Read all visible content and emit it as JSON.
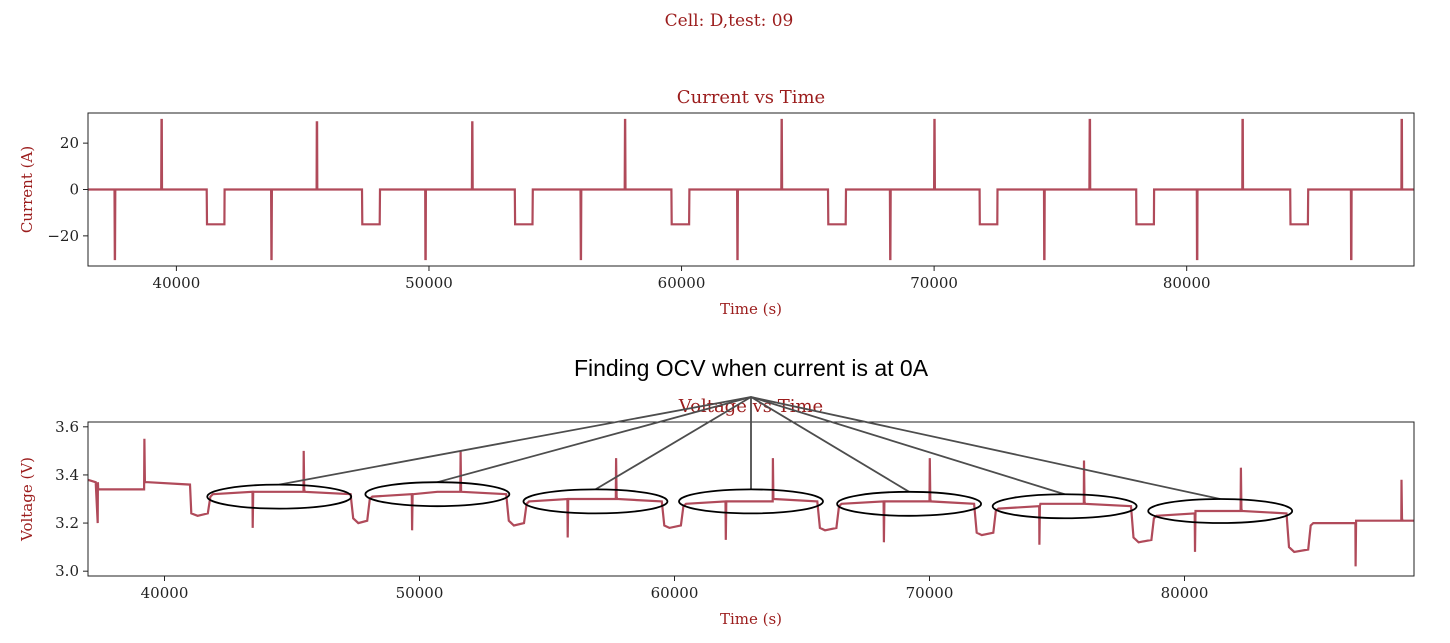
{
  "suptitle": "Cell: D,test: 09",
  "annotation": "Finding OCV when current is at 0A",
  "colors": {
    "line": "#b04a5a",
    "title": "#9b1c1c",
    "axis": "#222222",
    "annotation_line": "#4d4d4d"
  },
  "chart_data": [
    {
      "type": "line",
      "title": "Current vs Time",
      "xlabel": "Time (s)",
      "ylabel": "Current (A)",
      "xlim": [
        36500,
        89000
      ],
      "ylim": [
        -33,
        33
      ],
      "xticks": [
        40000,
        50000,
        60000,
        70000,
        80000
      ],
      "yticks": [
        -20,
        0,
        20
      ],
      "grid": false,
      "series": [
        {
          "x": [
            36500,
            37550,
            37560,
            37570,
            37580,
            39400,
            39410,
            39420,
            39430,
            41200,
            41210,
            41900,
            41910,
            43750,
            43760,
            43770,
            43780,
            45550,
            45560,
            45570,
            45580,
            47350,
            47360,
            48050,
            48060,
            49850,
            49860,
            49870,
            49880,
            51700,
            51710,
            51720,
            51730,
            53400,
            53410,
            54100,
            54110,
            56000,
            56010,
            56020,
            56030,
            57750,
            57760,
            57770,
            57780,
            59600,
            59610,
            60300,
            60310,
            62200,
            62210,
            62220,
            62230,
            63950,
            63960,
            63970,
            63980,
            65800,
            65810,
            66500,
            66510,
            68250,
            68260,
            68270,
            68280,
            70000,
            70010,
            70020,
            70030,
            71800,
            71810,
            72500,
            72510,
            74350,
            74360,
            74370,
            74380,
            76150,
            76160,
            76170,
            76180,
            78000,
            78010,
            78700,
            78710,
            80400,
            80410,
            80420,
            80430,
            82200,
            82210,
            82220,
            82230,
            84100,
            84110,
            84800,
            84810,
            86500,
            86510,
            86520,
            86530,
            88500,
            88510,
            88520,
            88530,
            89000
          ],
          "y": [
            0,
            0,
            -30,
            -30,
            0,
            0,
            30,
            30,
            0,
            0,
            -15,
            -15,
            0,
            0,
            -30,
            -30,
            0,
            0,
            29,
            29,
            0,
            0,
            -15,
            -15,
            0,
            0,
            -30,
            -30,
            0,
            0,
            29,
            29,
            0,
            0,
            -15,
            -15,
            0,
            0,
            -30,
            -30,
            0,
            0,
            30,
            30,
            0,
            0,
            -15,
            -15,
            0,
            0,
            -30,
            -30,
            0,
            0,
            30,
            30,
            0,
            0,
            -15,
            -15,
            0,
            0,
            -30,
            -30,
            0,
            0,
            30,
            30,
            0,
            0,
            -15,
            -15,
            0,
            0,
            -30,
            -30,
            0,
            0,
            30,
            30,
            0,
            0,
            -15,
            -15,
            0,
            0,
            -30,
            -30,
            0,
            0,
            30,
            30,
            0,
            0,
            -15,
            -15,
            0,
            0,
            -30,
            -30,
            0,
            0,
            30,
            30,
            0,
            0
          ]
        }
      ]
    },
    {
      "type": "line",
      "title": "Voltage vs Time",
      "xlabel": "Time (s)",
      "ylabel": "Voltage (V)",
      "xlim": [
        37000,
        89000
      ],
      "ylim": [
        2.98,
        3.62
      ],
      "xticks": [
        40000,
        50000,
        60000,
        70000,
        80000
      ],
      "yticks": [
        3.0,
        3.2,
        3.4,
        3.6
      ],
      "grid": false,
      "series": [
        {
          "x": [
            37000,
            37300,
            37380,
            37390,
            37400,
            37420,
            37500,
            39200,
            39210,
            39230,
            39260,
            39350,
            41000,
            41050,
            41300,
            41700,
            41800,
            41900,
            43450,
            43460,
            43480,
            43500,
            44500,
            45450,
            45460,
            45480,
            45500,
            47300,
            47400,
            47600,
            47950,
            48050,
            48150,
            49700,
            49710,
            49730,
            49750,
            50700,
            51600,
            51610,
            51630,
            51650,
            53400,
            53500,
            53700,
            54100,
            54200,
            54300,
            55800,
            55810,
            55830,
            55850,
            56900,
            57700,
            57710,
            57730,
            57750,
            59500,
            59600,
            59800,
            60250,
            60350,
            60450,
            62000,
            62010,
            62030,
            62050,
            63000,
            63850,
            63860,
            63880,
            63900,
            65600,
            65700,
            65900,
            66350,
            66450,
            66550,
            68200,
            68210,
            68230,
            68250,
            69200,
            70000,
            70010,
            70030,
            70050,
            71750,
            71850,
            72050,
            72500,
            72600,
            72700,
            74300,
            74310,
            74330,
            74350,
            75300,
            76050,
            76060,
            76080,
            76100,
            77900,
            78000,
            78200,
            78700,
            78800,
            78900,
            80400,
            80410,
            80430,
            80450,
            81400,
            82200,
            82210,
            82230,
            82250,
            84000,
            84100,
            84300,
            84850,
            84950,
            85050,
            86700,
            86710,
            86730,
            86750,
            87700,
            88500,
            88510,
            88530,
            88550,
            89000
          ],
          "y": [
            3.38,
            3.37,
            3.2,
            3.37,
            3.34,
            3.34,
            3.34,
            3.34,
            3.55,
            3.37,
            3.37,
            3.37,
            3.36,
            3.24,
            3.23,
            3.24,
            3.31,
            3.32,
            3.33,
            3.18,
            3.33,
            3.33,
            3.33,
            3.33,
            3.5,
            3.34,
            3.33,
            3.32,
            3.22,
            3.2,
            3.21,
            3.3,
            3.31,
            3.32,
            3.17,
            3.32,
            3.32,
            3.33,
            3.33,
            3.5,
            3.33,
            3.33,
            3.32,
            3.21,
            3.19,
            3.2,
            3.28,
            3.29,
            3.3,
            3.14,
            3.3,
            3.3,
            3.3,
            3.3,
            3.47,
            3.31,
            3.3,
            3.29,
            3.19,
            3.18,
            3.19,
            3.27,
            3.28,
            3.29,
            3.13,
            3.29,
            3.29,
            3.29,
            3.29,
            3.47,
            3.3,
            3.3,
            3.29,
            3.18,
            3.17,
            3.18,
            3.27,
            3.28,
            3.29,
            3.12,
            3.29,
            3.29,
            3.29,
            3.29,
            3.47,
            3.3,
            3.29,
            3.28,
            3.16,
            3.15,
            3.16,
            3.25,
            3.26,
            3.27,
            3.11,
            3.27,
            3.28,
            3.28,
            3.28,
            3.46,
            3.29,
            3.28,
            3.27,
            3.14,
            3.12,
            3.13,
            3.22,
            3.23,
            3.24,
            3.08,
            3.25,
            3.25,
            3.25,
            3.25,
            3.43,
            3.26,
            3.25,
            3.24,
            3.1,
            3.08,
            3.09,
            3.19,
            3.2,
            3.2,
            3.02,
            3.21,
            3.21,
            3.21,
            3.21,
            3.38,
            3.22,
            3.21,
            3.21
          ]
        }
      ],
      "highlights": [
        {
          "x": 44500,
          "y": 3.31
        },
        {
          "x": 50700,
          "y": 3.32
        },
        {
          "x": 56900,
          "y": 3.29
        },
        {
          "x": 63000,
          "y": 3.29
        },
        {
          "x": 69200,
          "y": 3.28
        },
        {
          "x": 75300,
          "y": 3.27
        },
        {
          "x": 81400,
          "y": 3.25
        }
      ]
    }
  ]
}
